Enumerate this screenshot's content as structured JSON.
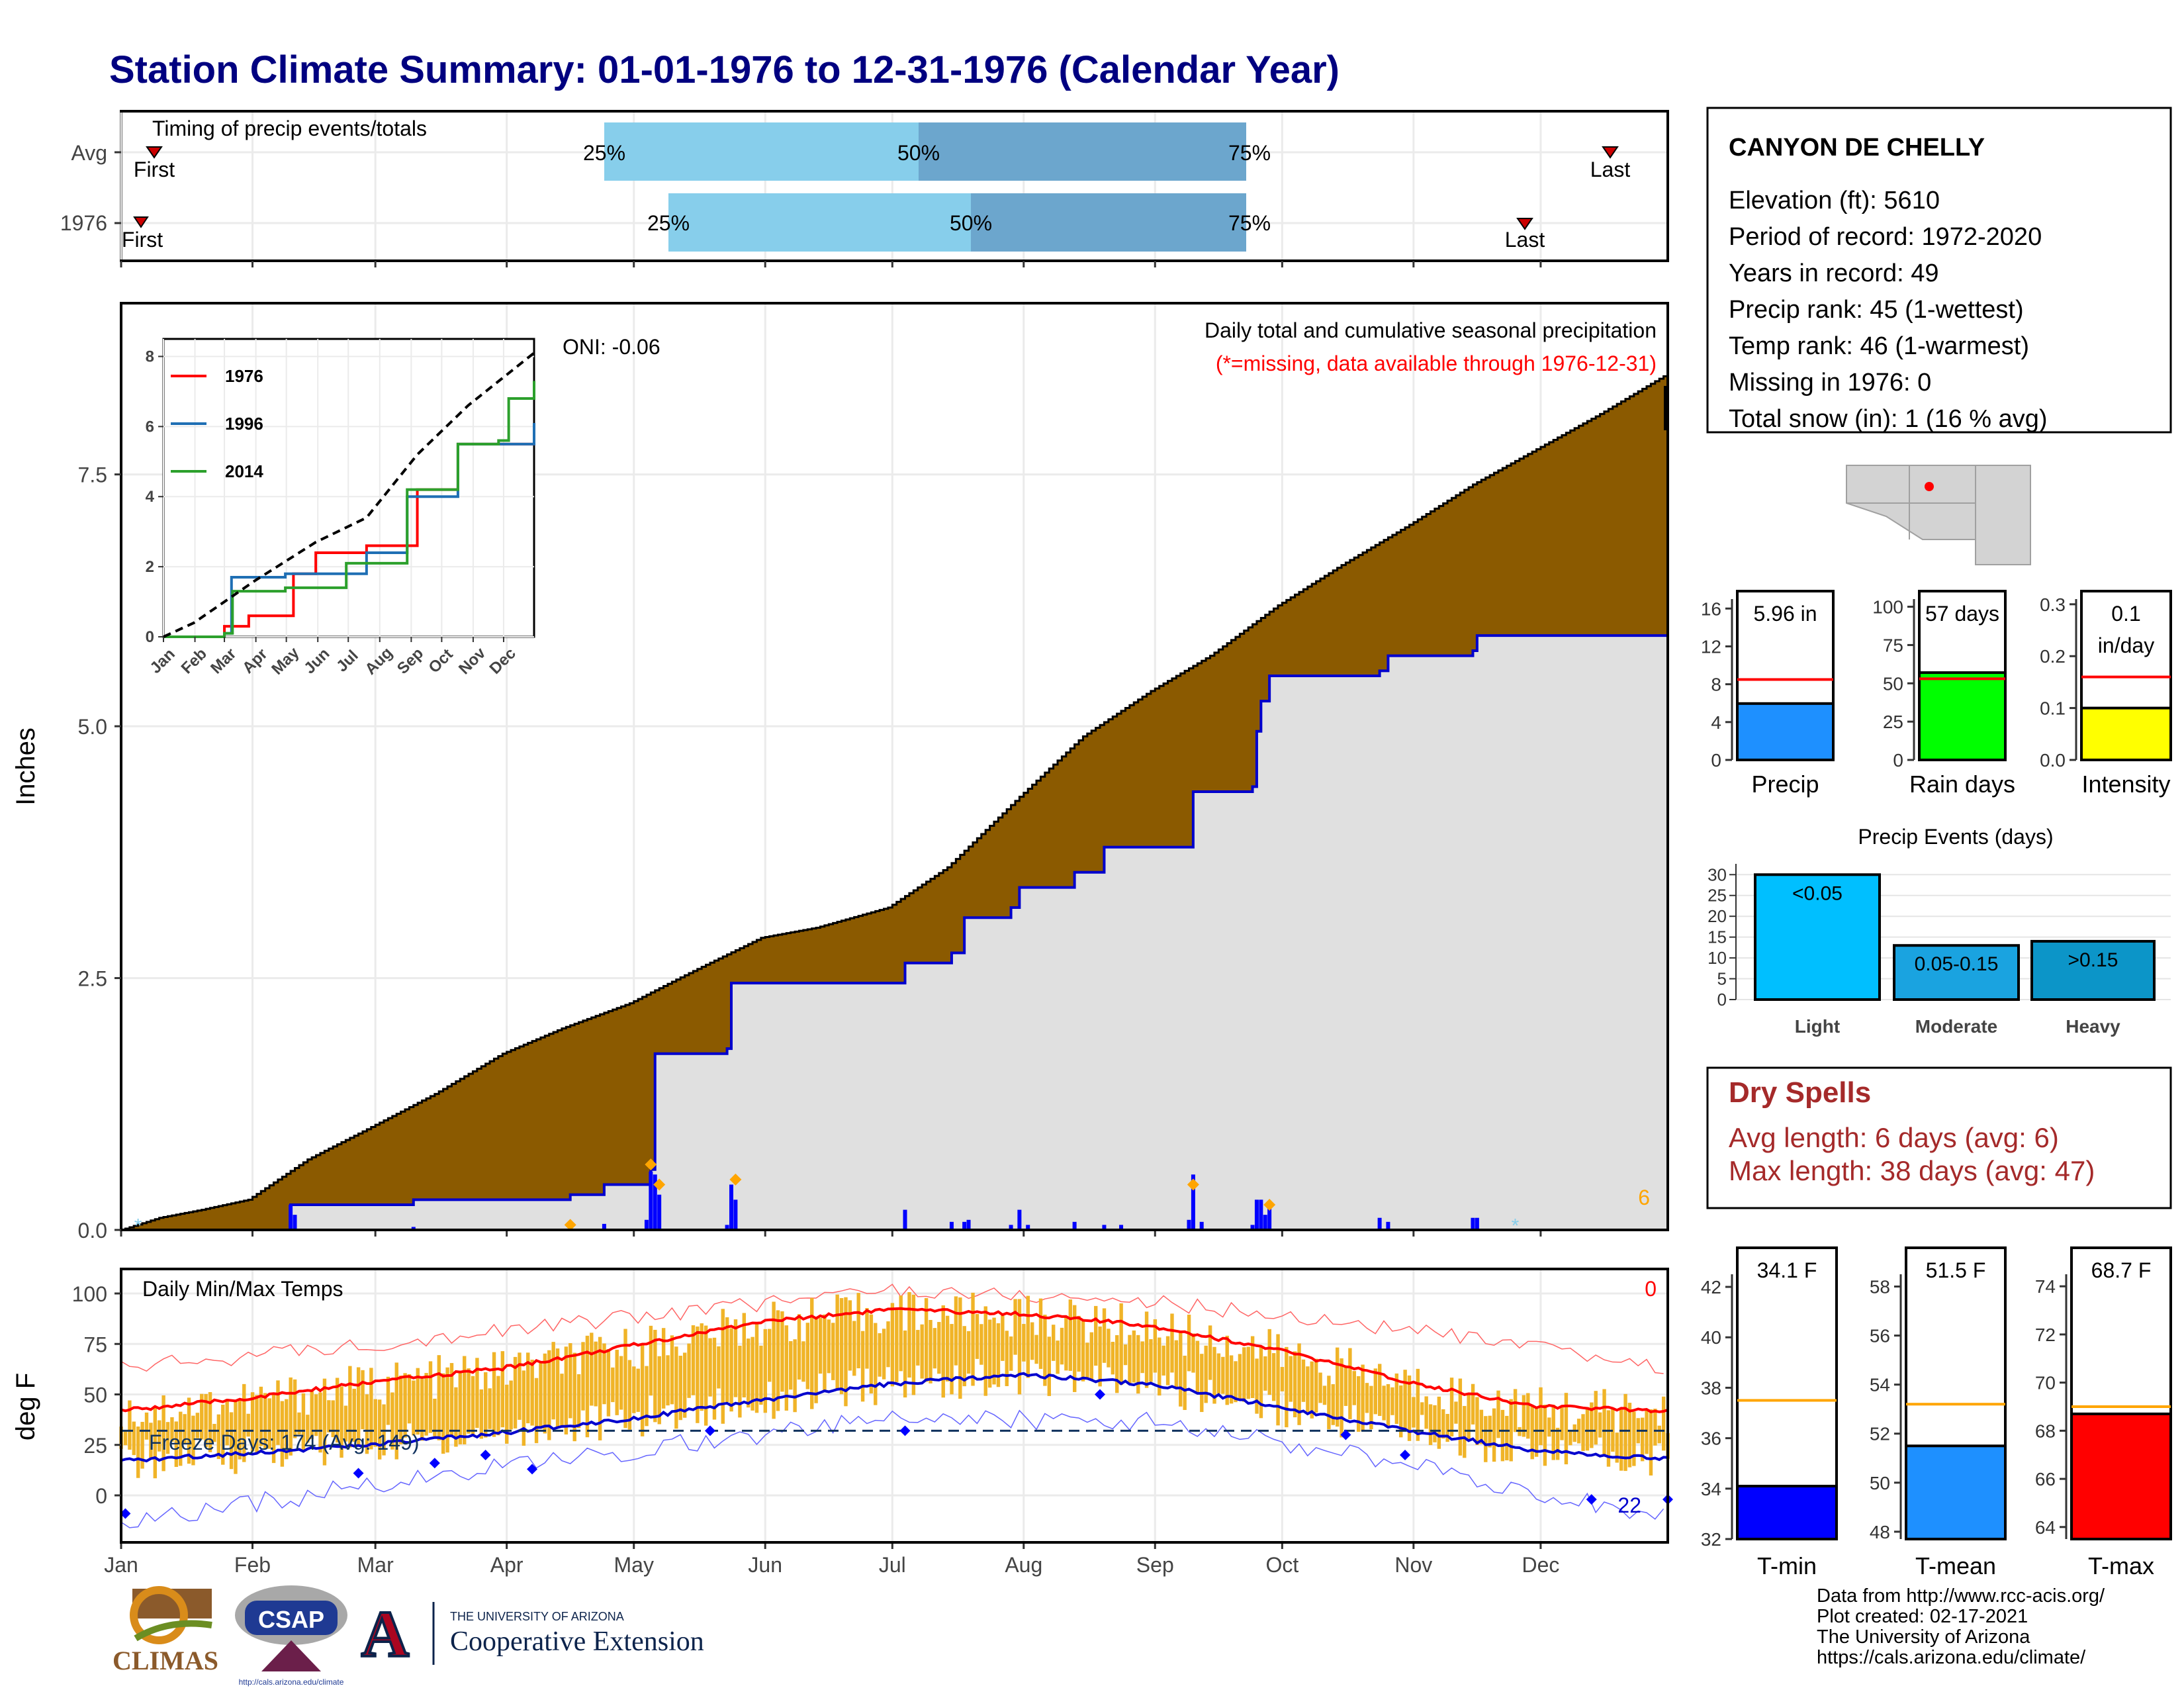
{
  "title": "Station Climate Summary: 01-01-1976 to 12-31-1976 (Calendar Year)",
  "months": [
    "Jan",
    "Feb",
    "Mar",
    "Apr",
    "May",
    "Jun",
    "Jul",
    "Aug",
    "Sep",
    "Oct",
    "Nov",
    "Dec"
  ],
  "timing": {
    "label": "Timing of precip events/totals",
    "rows": [
      {
        "label": "Avg",
        "first_label": "First",
        "last_label": "Last",
        "p25": "25%",
        "p50": "50%",
        "p75": "75%"
      },
      {
        "label": "1976",
        "first_label": "First",
        "last_label": "Last",
        "p25": "25%",
        "p50": "50%",
        "p75": "75%"
      }
    ]
  },
  "station": {
    "name": "CANYON DE CHELLY",
    "lines": [
      "Elevation (ft): 5610",
      "Period of record: 1972-2020",
      "Years in record: 49",
      "Precip rank: 45 (1-wettest)",
      "Temp rank: 46 (1-warmest)",
      "Missing in 1976: 0",
      "Total snow (in): 1 (16 % avg)"
    ]
  },
  "precip_panel": {
    "ylabel": "Inches",
    "caption": "Daily total and cumulative seasonal precipitation",
    "missing_note": "(*=missing, data available through 1976-12-31)",
    "oni": "ONI: -0.06",
    "corner_count": "6",
    "yticks": [
      "0.0",
      "2.5",
      "5.0",
      "7.5"
    ],
    "colors": {
      "avg_fill": "#8B5A00",
      "year_fill": "#E0E0E0",
      "year_line": "#0000CD",
      "bars": "#0000FF",
      "event_marker": "#FFA500"
    }
  },
  "temp_panel": {
    "ylabel": "deg F",
    "label": "Daily Min/Max Temps",
    "freeze_label": "Freeze Days: 174 (Avg: 149)",
    "hot_count": "0",
    "cold_count": "22",
    "yticks": [
      "0",
      "25",
      "50",
      "75",
      "100"
    ],
    "colors": {
      "range": "#F0B428",
      "avg_max": "#FF0000",
      "avg_min": "#0000CD",
      "rec": "#FF6666",
      "rec_min": "#6666FF"
    }
  },
  "summary_bars": [
    {
      "label": "Precip",
      "value_text": "5.96 in",
      "yticks": [
        "0",
        "4",
        "8",
        "12",
        "16"
      ],
      "color": "#1E90FF"
    },
    {
      "label": "Rain days",
      "value_text": "57 days",
      "yticks": [
        "0",
        "25",
        "50",
        "75",
        "100"
      ],
      "color": "#00FF00"
    },
    {
      "label": "Intensity",
      "value_text": "0.1 in/day",
      "value_line1": "0.1",
      "value_line2": "in/day",
      "yticks": [
        "0.0",
        "0.1",
        "0.2",
        "0.3"
      ],
      "color": "#FFFF00"
    }
  ],
  "events": {
    "title": "Precip Events (days)",
    "yticks": [
      "0",
      "5",
      "10",
      "15",
      "20",
      "25",
      "30"
    ],
    "bars": [
      {
        "category": "Light",
        "label": "<0.05",
        "color": "#00BFFF"
      },
      {
        "category": "Moderate",
        "label": "0.05-0.15",
        "color": "#1AA3E0"
      },
      {
        "category": "Heavy",
        "label": ">0.15",
        "color": "#0C95C8"
      }
    ]
  },
  "dry_spells": {
    "title": "Dry Spells",
    "avg_length": "Avg length: 6 days (avg: 6)",
    "max_length": "Max length: 38 days (avg: 47)"
  },
  "temp_bars": [
    {
      "label": "T-min",
      "value_text": "34.1 F",
      "yticks": [
        "32",
        "34",
        "36",
        "38",
        "40",
        "42"
      ],
      "color": "#0000FF"
    },
    {
      "label": "T-mean",
      "value_text": "51.5 F",
      "yticks": [
        "48",
        "50",
        "52",
        "54",
        "56",
        "58"
      ],
      "color": "#1E90FF"
    },
    {
      "label": "T-max",
      "value_text": "68.7 F",
      "yticks": [
        "64",
        "66",
        "68",
        "70",
        "72",
        "74"
      ],
      "color": "#FF0000"
    }
  ],
  "credits": [
    "Data from http://www.rcc-acis.org/",
    "Plot created: 02-17-2021",
    "The University of Arizona",
    "https://cals.arizona.edu/climate/"
  ],
  "logos": {
    "climas": "CLIMAS",
    "csap": "CSAP",
    "csap_url": "http://cals.arizona.edu/climate",
    "ua_line1": "THE UNIVERSITY OF ARIZONA",
    "ua_line2": "Cooperative Extension"
  },
  "chart_data": [
    {
      "type": "area",
      "name": "cumulative precipitation",
      "y_unit": "inches",
      "ylim": [
        0,
        9.2
      ],
      "x": "day of year 1-366",
      "avg_cumulative": [
        [
          1,
          0.0
        ],
        [
          10,
          0.12
        ],
        [
          20,
          0.2
        ],
        [
          31,
          0.3
        ],
        [
          45,
          0.7
        ],
        [
          59,
          1.0
        ],
        [
          75,
          1.35
        ],
        [
          91,
          1.75
        ],
        [
          105,
          2.0
        ],
        [
          121,
          2.25
        ],
        [
          135,
          2.55
        ],
        [
          152,
          2.9
        ],
        [
          165,
          3.0
        ],
        [
          182,
          3.2
        ],
        [
          196,
          3.6
        ],
        [
          213,
          4.3
        ],
        [
          228,
          4.9
        ],
        [
          244,
          5.35
        ],
        [
          258,
          5.7
        ],
        [
          274,
          6.2
        ],
        [
          289,
          6.6
        ],
        [
          305,
          7.0
        ],
        [
          320,
          7.4
        ],
        [
          335,
          7.75
        ],
        [
          350,
          8.1
        ],
        [
          366,
          8.5
        ]
      ],
      "year_cumulative": [
        [
          1,
          0.0
        ],
        [
          40,
          0.0
        ],
        [
          41,
          0.25
        ],
        [
          70,
          0.3
        ],
        [
          107,
          0.35
        ],
        [
          115,
          0.45
        ],
        [
          126,
          0.6
        ],
        [
          127,
          1.75
        ],
        [
          144,
          1.8
        ],
        [
          145,
          2.45
        ],
        [
          185,
          2.45
        ],
        [
          186,
          2.65
        ],
        [
          197,
          2.75
        ],
        [
          200,
          3.1
        ],
        [
          211,
          3.2
        ],
        [
          213,
          3.4
        ],
        [
          226,
          3.55
        ],
        [
          233,
          3.8
        ],
        [
          253,
          3.8
        ],
        [
          254,
          4.35
        ],
        [
          268,
          4.4
        ],
        [
          269,
          4.95
        ],
        [
          270,
          5.25
        ],
        [
          272,
          5.5
        ],
        [
          298,
          5.55
        ],
        [
          300,
          5.7
        ],
        [
          320,
          5.75
        ],
        [
          321,
          5.9
        ],
        [
          366,
          5.96
        ]
      ],
      "daily_bars": [
        [
          41,
          0.25
        ],
        [
          42,
          0.15
        ],
        [
          70,
          0.03
        ],
        [
          107,
          0.05
        ],
        [
          115,
          0.06
        ],
        [
          125,
          0.1
        ],
        [
          126,
          0.58
        ],
        [
          127,
          0.55
        ],
        [
          128,
          0.35
        ],
        [
          144,
          0.05
        ],
        [
          145,
          0.45
        ],
        [
          146,
          0.3
        ],
        [
          186,
          0.2
        ],
        [
          197,
          0.08
        ],
        [
          200,
          0.08
        ],
        [
          201,
          0.1
        ],
        [
          211,
          0.05
        ],
        [
          213,
          0.2
        ],
        [
          215,
          0.05
        ],
        [
          226,
          0.08
        ],
        [
          233,
          0.05
        ],
        [
          237,
          0.05
        ],
        [
          253,
          0.1
        ],
        [
          254,
          0.55
        ],
        [
          256,
          0.08
        ],
        [
          268,
          0.05
        ],
        [
          269,
          0.3
        ],
        [
          270,
          0.3
        ],
        [
          271,
          0.15
        ],
        [
          272,
          0.25
        ],
        [
          298,
          0.12
        ],
        [
          300,
          0.08
        ],
        [
          320,
          0.12
        ],
        [
          321,
          0.12
        ]
      ],
      "event_markers": [
        [
          107,
          0.05
        ],
        [
          126,
          0.65
        ],
        [
          128,
          0.45
        ],
        [
          146,
          0.5
        ],
        [
          254,
          0.45
        ],
        [
          272,
          0.25
        ]
      ],
      "missing_markers": [
        [
          5,
          0.03
        ],
        [
          330,
          0.03
        ]
      ]
    },
    {
      "type": "line",
      "name": "inset cumulative comparison",
      "series": [
        {
          "name": "1976",
          "values": [
            [
              0,
              0
            ],
            [
              60,
              0.3
            ],
            [
              84,
              0.4
            ],
            [
              84,
              0.6
            ],
            [
              128,
              0.6
            ],
            [
              128,
              1.8
            ],
            [
              150,
              1.8
            ],
            [
              150,
              2.4
            ],
            [
              200,
              2.6
            ],
            [
              250,
              4.2
            ],
            [
              290,
              5.5
            ],
            [
              365,
              6.0
            ]
          ]
        },
        {
          "name": "1996",
          "values": [
            [
              0,
              0
            ],
            [
              60,
              0.1
            ],
            [
              67,
              1.7
            ],
            [
              120,
              1.8
            ],
            [
              200,
              2.4
            ],
            [
              240,
              4.0
            ],
            [
              290,
              5.5
            ],
            [
              365,
              6.1
            ]
          ]
        },
        {
          "name": "2014",
          "values": [
            [
              0,
              0
            ],
            [
              60,
              0.1
            ],
            [
              68,
              1.3
            ],
            [
              120,
              1.4
            ],
            [
              180,
              2.1
            ],
            [
              240,
              4.2
            ],
            [
              290,
              5.5
            ],
            [
              330,
              5.6
            ],
            [
              340,
              6.8
            ],
            [
              365,
              7.3
            ]
          ]
        },
        {
          "name": "average",
          "values": [
            [
              0,
              0
            ],
            [
              30,
              0.4
            ],
            [
              90,
              1.6
            ],
            [
              150,
              2.7
            ],
            [
              200,
              3.4
            ],
            [
              250,
              5.2
            ],
            [
              300,
              6.6
            ],
            [
              365,
              8.1
            ]
          ]
        }
      ],
      "ylim": [
        0,
        8.5
      ]
    },
    {
      "type": "line",
      "name": "daily min/max temperature",
      "y_unit": "deg F",
      "ylim": [
        -20,
        105
      ],
      "avg_max": [
        [
          1,
          42
        ],
        [
          31,
          48
        ],
        [
          60,
          56
        ],
        [
          91,
          63
        ],
        [
          121,
          74
        ],
        [
          152,
          86
        ],
        [
          182,
          92
        ],
        [
          213,
          90
        ],
        [
          244,
          84
        ],
        [
          274,
          72
        ],
        [
          305,
          56
        ],
        [
          335,
          44
        ],
        [
          366,
          42
        ]
      ],
      "avg_min": [
        [
          1,
          17
        ],
        [
          31,
          21
        ],
        [
          60,
          25
        ],
        [
          91,
          31
        ],
        [
          121,
          38
        ],
        [
          152,
          47
        ],
        [
          182,
          55
        ],
        [
          213,
          60
        ],
        [
          244,
          55
        ],
        [
          274,
          44
        ],
        [
          305,
          32
        ],
        [
          335,
          22
        ],
        [
          366,
          18
        ]
      ],
      "record_max": [
        [
          1,
          63
        ],
        [
          60,
          75
        ],
        [
          121,
          88
        ],
        [
          182,
          102
        ],
        [
          244,
          96
        ],
        [
          305,
          82
        ],
        [
          366,
          63
        ]
      ],
      "record_min": [
        [
          1,
          -14
        ],
        [
          60,
          5
        ],
        [
          121,
          22
        ],
        [
          182,
          38
        ],
        [
          244,
          37
        ],
        [
          305,
          15
        ],
        [
          366,
          -12
        ]
      ],
      "freeze_threshold": 32
    },
    {
      "type": "bar",
      "name": "Precip",
      "value": 5.96,
      "avg": 8.5,
      "ylim": [
        0,
        17
      ]
    },
    {
      "type": "bar",
      "name": "Rain days",
      "value": 57,
      "avg": 53,
      "ylim": [
        0,
        105
      ]
    },
    {
      "type": "bar",
      "name": "Intensity",
      "value": 0.1,
      "avg": 0.16,
      "ylim": [
        0,
        0.31
      ]
    },
    {
      "type": "bar",
      "name": "Precip Events (days)",
      "categories": [
        "Light",
        "Moderate",
        "Heavy"
      ],
      "values": [
        30,
        13,
        14
      ],
      "ylim": [
        0,
        31
      ]
    },
    {
      "type": "bar",
      "name": "T-min",
      "value": 34.1,
      "avg": 37.5,
      "ylim": [
        32,
        42.5
      ]
    },
    {
      "type": "bar",
      "name": "T-mean",
      "value": 51.5,
      "avg": 53.2,
      "ylim": [
        47.7,
        58.5
      ]
    },
    {
      "type": "bar",
      "name": "T-max",
      "value": 68.7,
      "avg": 69.0,
      "ylim": [
        63.5,
        74.5
      ]
    }
  ]
}
